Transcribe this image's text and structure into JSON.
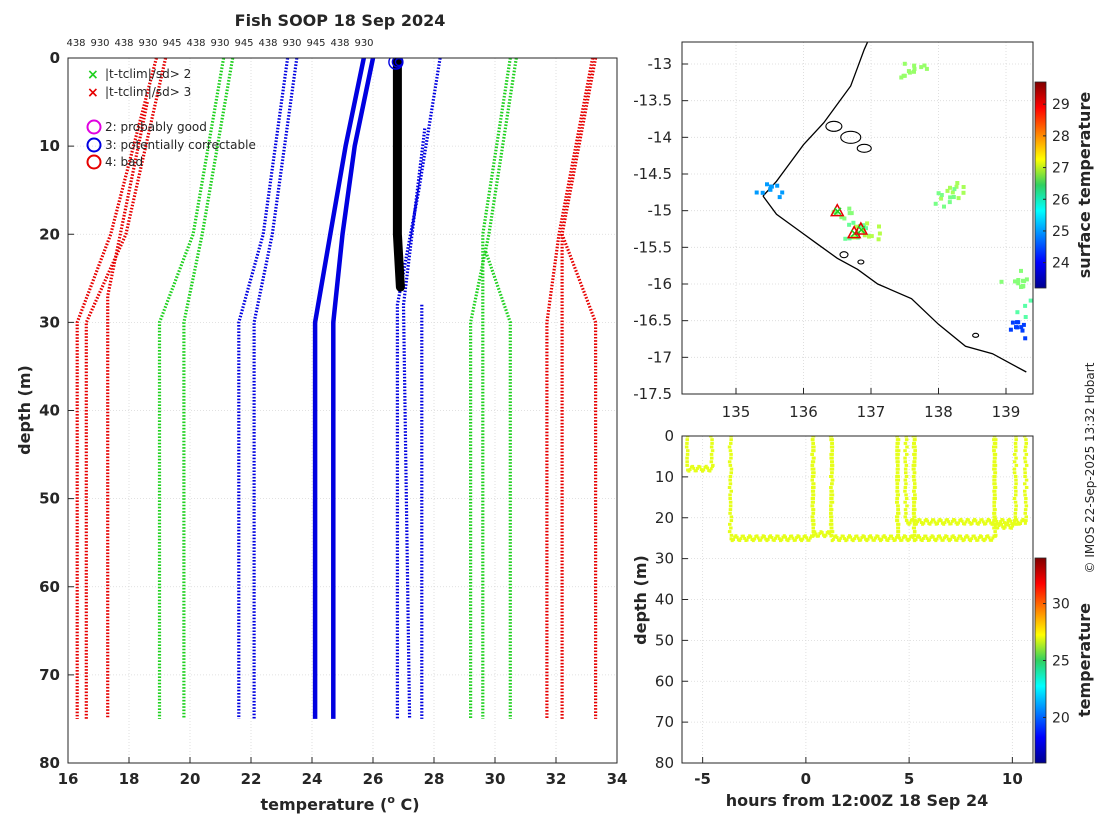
{
  "colors": {
    "red": "#e60000",
    "green": "#1ed01e",
    "blue": "#0000e0",
    "black": "#000000",
    "yellow_green": "#c8f000"
  },
  "chart_data": [
    {
      "type": "line",
      "id": "profile",
      "title": "Fish SOOP 18 Sep 2024",
      "xlabel": "temperature (",
      "xlabel_sup": "o",
      "xlabel_end": " C)",
      "ylabel": "depth (m)",
      "xlim": [
        16,
        34
      ],
      "ylim": [
        80,
        0
      ],
      "xticks": [
        16,
        18,
        20,
        22,
        24,
        26,
        28,
        30,
        32,
        34
      ],
      "yticks": [
        0,
        10,
        20,
        30,
        40,
        50,
        60,
        70,
        80
      ],
      "top_labels": [
        "438",
        "930",
        "438",
        "930",
        "945",
        "438",
        "930",
        "945",
        "438",
        "930",
        "945",
        "438",
        "930"
      ],
      "legend": [
        {
          "marker": "x",
          "color": "#1ed01e",
          "label": "|t-tclim|/sd> 2"
        },
        {
          "marker": "x",
          "color": "#e60000",
          "label": "|t-tclim|/sd> 3"
        },
        {
          "marker": "o",
          "color": "#e000e0",
          "label": "2: probably good"
        },
        {
          "marker": "o",
          "color": "#0000e0",
          "label": "3: potentially correctable"
        },
        {
          "marker": "o",
          "color": "#e60000",
          "label": "4: bad"
        }
      ],
      "series": [
        {
          "name": "clim-3sd-a",
          "color": "#e60000",
          "style": "dotted",
          "points": [
            [
              18.9,
              0
            ],
            [
              17.4,
              20
            ],
            [
              16.3,
              30
            ],
            [
              16.3,
              75
            ]
          ]
        },
        {
          "name": "clim-3sd-b",
          "color": "#e60000",
          "style": "dotted",
          "points": [
            [
              19.2,
              0
            ],
            [
              17.9,
              20
            ],
            [
              16.6,
              30
            ],
            [
              16.6,
              75
            ]
          ]
        },
        {
          "name": "clim-3sd-c",
          "color": "#e60000",
          "style": "dotted",
          "points": [
            [
              18.6,
              5
            ],
            [
              17.3,
              27
            ],
            [
              17.3,
              75
            ]
          ]
        },
        {
          "name": "clim-2sd-a",
          "color": "#1ed01e",
          "style": "dotted",
          "points": [
            [
              21.1,
              0
            ],
            [
              20.1,
              20
            ],
            [
              19.0,
              30
            ],
            [
              19.0,
              75
            ]
          ]
        },
        {
          "name": "clim-2sd-b",
          "color": "#1ed01e",
          "style": "dotted",
          "points": [
            [
              21.4,
              0
            ],
            [
              20.4,
              20
            ],
            [
              19.8,
              30
            ],
            [
              19.8,
              75
            ]
          ]
        },
        {
          "name": "clim-1sd-a",
          "color": "#0000e0",
          "style": "dotted",
          "points": [
            [
              23.2,
              0
            ],
            [
              22.4,
              20
            ],
            [
              21.6,
              30
            ],
            [
              21.6,
              75
            ]
          ]
        },
        {
          "name": "clim-1sd-b",
          "color": "#0000e0",
          "style": "dotted",
          "points": [
            [
              23.5,
              0
            ],
            [
              22.7,
              20
            ],
            [
              22.1,
              30
            ],
            [
              22.1,
              75
            ]
          ]
        },
        {
          "name": "mean-a",
          "color": "#0000e0",
          "style": "solid",
          "points": [
            [
              25.7,
              0
            ],
            [
              25.1,
              10
            ],
            [
              24.6,
              20
            ],
            [
              24.1,
              30
            ],
            [
              24.1,
              75
            ]
          ]
        },
        {
          "name": "mean-b",
          "color": "#0000e0",
          "style": "solid",
          "points": [
            [
              26.0,
              0
            ],
            [
              25.4,
              10
            ],
            [
              25.0,
              20
            ],
            [
              24.7,
              30
            ],
            [
              24.7,
              75
            ]
          ]
        },
        {
          "name": "clim+1sd-a",
          "color": "#0000e0",
          "style": "dotted",
          "points": [
            [
              28.2,
              0
            ],
            [
              27.5,
              15
            ],
            [
              26.8,
              28
            ],
            [
              26.8,
              75
            ]
          ]
        },
        {
          "name": "clim+1sd-b",
          "color": "#0000e0",
          "style": "dotted",
          "points": [
            [
              27.7,
              8
            ],
            [
              27.0,
              28
            ],
            [
              27.2,
              75
            ]
          ]
        },
        {
          "name": "clim+1sd-c",
          "color": "#0000e0",
          "style": "dotted",
          "points": [
            [
              27.6,
              28
            ],
            [
              27.6,
              75
            ]
          ]
        },
        {
          "name": "clim+2sd-a",
          "color": "#1ed01e",
          "style": "dotted",
          "points": [
            [
              30.7,
              0
            ],
            [
              29.8,
              20
            ],
            [
              29.2,
              30
            ],
            [
              29.2,
              75
            ]
          ]
        },
        {
          "name": "clim+2sd-b",
          "color": "#1ed01e",
          "style": "dotted",
          "points": [
            [
              30.5,
              0
            ],
            [
              29.6,
              20
            ],
            [
              29.6,
              75
            ]
          ]
        },
        {
          "name": "clim+2sd-c",
          "color": "#1ed01e",
          "style": "dotted",
          "points": [
            [
              29.7,
              22
            ],
            [
              30.5,
              30
            ],
            [
              30.5,
              75
            ]
          ]
        },
        {
          "name": "clim+3sd-a",
          "color": "#e60000",
          "style": "dotted",
          "points": [
            [
              33.2,
              0
            ],
            [
              32.1,
              20
            ],
            [
              31.7,
              30
            ],
            [
              31.7,
              75
            ]
          ]
        },
        {
          "name": "clim+3sd-b",
          "color": "#e60000",
          "style": "dotted",
          "points": [
            [
              33.3,
              0
            ],
            [
              32.2,
              20
            ],
            [
              32.2,
              75
            ]
          ]
        },
        {
          "name": "clim+3sd-c",
          "color": "#e60000",
          "style": "dotted",
          "points": [
            [
              32.2,
              20
            ],
            [
              33.3,
              30
            ],
            [
              33.3,
              75
            ]
          ]
        },
        {
          "name": "observed",
          "color": "#000000",
          "style": "bold",
          "points": [
            [
              26.8,
              0
            ],
            [
              26.8,
              10
            ],
            [
              26.8,
              20
            ],
            [
              26.9,
              26
            ]
          ]
        }
      ]
    },
    {
      "type": "scatter",
      "id": "map",
      "xlim": [
        134.2,
        139.4
      ],
      "ylim": [
        -17.5,
        -12.7
      ],
      "xticks": [
        135,
        136,
        137,
        138,
        139
      ],
      "yticks": [
        -13,
        -13.5,
        -14,
        -14.5,
        -15,
        -15.5,
        -16,
        -16.5,
        -17,
        -17.5
      ],
      "colorbar_label": "surface temperature",
      "colorbar_ticks": [
        24,
        25,
        26,
        27,
        28,
        29
      ],
      "colorbar_range": [
        23.2,
        29.7
      ],
      "coastline": [
        [
          135.4,
          -14.8
        ],
        [
          135.6,
          -14.6
        ],
        [
          135.8,
          -14.35
        ],
        [
          136.0,
          -14.1
        ],
        [
          136.3,
          -13.8
        ],
        [
          136.5,
          -13.55
        ],
        [
          136.7,
          -13.3
        ],
        [
          136.8,
          -13.05
        ],
        [
          136.9,
          -12.8
        ],
        [
          136.95,
          -12.7
        ]
      ],
      "coastline_south": [
        [
          135.4,
          -14.8
        ],
        [
          135.6,
          -15.05
        ],
        [
          135.9,
          -15.25
        ],
        [
          136.2,
          -15.45
        ],
        [
          136.5,
          -15.65
        ],
        [
          136.8,
          -15.8
        ],
        [
          137.1,
          -16.0
        ],
        [
          137.6,
          -16.2
        ],
        [
          138.0,
          -16.55
        ],
        [
          138.4,
          -16.85
        ],
        [
          138.8,
          -16.95
        ],
        [
          139.1,
          -17.1
        ],
        [
          139.3,
          -17.2
        ]
      ],
      "observations": [
        {
          "lon": 136.55,
          "lat": -15.0,
          "t": 26.5
        },
        {
          "lon": 136.75,
          "lat": -15.25,
          "t": 26.3
        },
        {
          "lon": 136.9,
          "lat": -15.25,
          "t": 26.8
        },
        {
          "lon": 138.2,
          "lat": -14.7,
          "t": 26.7
        },
        {
          "lon": 138.1,
          "lat": -14.8,
          "t": 26.4
        },
        {
          "lon": 137.6,
          "lat": -13.05,
          "t": 26.6
        },
        {
          "lon": 139.1,
          "lat": -15.9,
          "t": 26.5
        },
        {
          "lon": 139.3,
          "lat": -16.3,
          "t": 26.2
        },
        {
          "lon": 139.25,
          "lat": -16.6,
          "t": 24.4
        },
        {
          "lon": 135.45,
          "lat": -14.72,
          "t": 25.0
        }
      ],
      "flagged": [
        {
          "lon": 136.5,
          "lat": -15.0
        },
        {
          "lon": 136.75,
          "lat": -15.3
        },
        {
          "lon": 136.85,
          "lat": -15.25
        }
      ]
    },
    {
      "type": "scatter",
      "id": "timeseries",
      "xlabel": "hours from 12:00Z 18 Sep 24",
      "ylabel": "depth (m)",
      "xlim": [
        -6,
        11
      ],
      "ylim": [
        80,
        0
      ],
      "xticks": [
        -5,
        0,
        5,
        10
      ],
      "yticks": [
        0,
        10,
        20,
        30,
        40,
        50,
        60,
        70,
        80
      ],
      "colorbar_label": "temperature",
      "colorbar_ticks": [
        20,
        25,
        30
      ],
      "colorbar_range": [
        16,
        34
      ],
      "point_temperature": 26.8,
      "casts": [
        {
          "t0": -5.8,
          "t1": -4.6,
          "bottom": 8
        },
        {
          "t0": -3.7,
          "t1": 0.3,
          "bottom": 25
        },
        {
          "t0": 0.3,
          "t1": 1.2,
          "bottom": 24
        },
        {
          "t0": 1.2,
          "t1": 4.4,
          "bottom": 25
        },
        {
          "t0": 4.4,
          "t1": 5.2,
          "bottom": 25
        },
        {
          "t0": 5.2,
          "t1": 9.1,
          "bottom": 25
        },
        {
          "t0": 9.1,
          "t1": 10.1,
          "bottom": 22
        },
        {
          "t0": 4.8,
          "t1": 10.6,
          "bottom": 21
        }
      ]
    }
  ],
  "credit": "© IMOS 22-Sep-2025 13:32 Hobart"
}
